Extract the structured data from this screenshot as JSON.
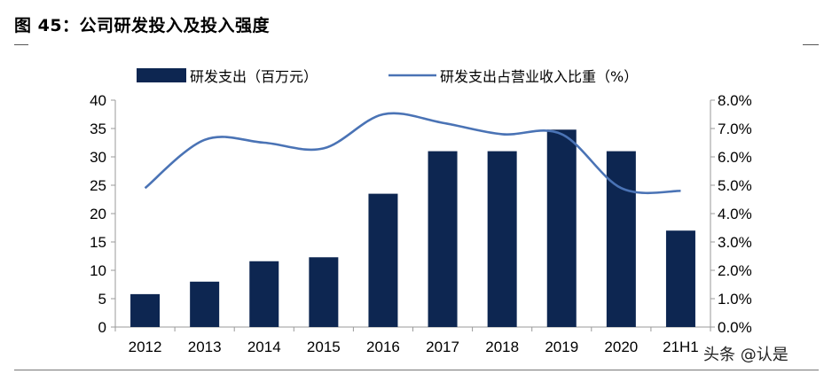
{
  "figure": {
    "title": "图 45：公司研发投入及投入强度",
    "watermark": "头条 @认是"
  },
  "colors": {
    "bar": "#0d2651",
    "line": "#4a73b5",
    "axis": "#9a9a9a"
  },
  "chart_data": {
    "type": "bar",
    "categories": [
      "2012",
      "2013",
      "2014",
      "2015",
      "2016",
      "2017",
      "2018",
      "2019",
      "2020",
      "21H1"
    ],
    "series": [
      {
        "name": "研发支出（百万元）",
        "type": "bar",
        "axis": "left",
        "values": [
          5.8,
          8.0,
          11.6,
          12.3,
          23.5,
          31.0,
          31.0,
          34.8,
          31.0,
          17.0
        ]
      },
      {
        "name": "研发支出占营业收入比重（%）",
        "type": "line",
        "axis": "right",
        "values": [
          4.9,
          6.6,
          6.5,
          6.3,
          7.5,
          7.2,
          6.8,
          6.8,
          4.9,
          4.8
        ]
      }
    ],
    "ylim_left": [
      0,
      40
    ],
    "yticks_left": [
      "0",
      "5",
      "10",
      "15",
      "20",
      "25",
      "30",
      "35",
      "40"
    ],
    "ylim_right": [
      0,
      8
    ],
    "yticks_right": [
      "0.0%",
      "1.0%",
      "2.0%",
      "3.0%",
      "4.0%",
      "5.0%",
      "6.0%",
      "7.0%",
      "8.0%"
    ],
    "legend_position": "top",
    "grid": false
  }
}
